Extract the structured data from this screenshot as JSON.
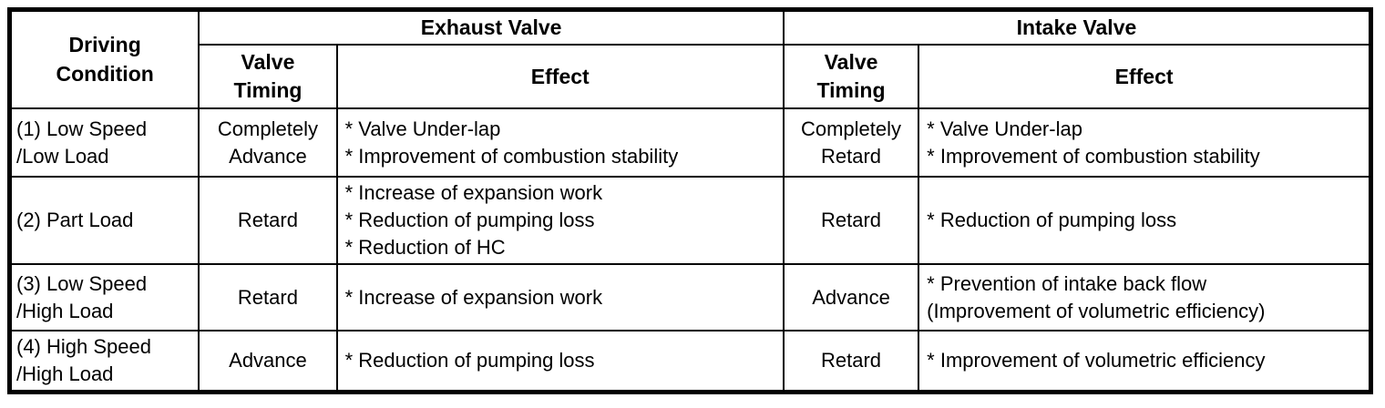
{
  "colors": {
    "background": "#ffffff",
    "border": "#000000",
    "text": "#000000"
  },
  "table": {
    "headers": {
      "driving_condition_lines": [
        "Driving",
        "Condition"
      ],
      "exhaust_valve": "Exhaust Valve",
      "intake_valve": "Intake Valve",
      "exhaust_valve_timing_lines": [
        "Valve",
        "Timing"
      ],
      "exhaust_effect": "Effect",
      "intake_valve_timing_lines": [
        "Valve",
        "Timing"
      ],
      "intake_effect": "Effect"
    },
    "rows": [
      {
        "condition_lines": [
          "(1) Low Speed",
          "/Low Load"
        ],
        "exhaust_timing_lines": [
          "Completely",
          "Advance"
        ],
        "exhaust_effects": [
          "* Valve Under-lap",
          "* Improvement of combustion stability"
        ],
        "intake_timing_lines": [
          "Completely",
          "Retard"
        ],
        "intake_effects": [
          "* Valve Under-lap",
          "* Improvement of combustion stability"
        ]
      },
      {
        "condition_lines": [
          "(2) Part Load"
        ],
        "exhaust_timing_lines": [
          "Retard"
        ],
        "exhaust_effects": [
          "* Increase of expansion work",
          "* Reduction of pumping loss",
          "* Reduction of HC"
        ],
        "intake_timing_lines": [
          "Retard"
        ],
        "intake_effects": [
          "* Reduction of pumping loss"
        ]
      },
      {
        "condition_lines": [
          "(3) Low Speed",
          "/High Load"
        ],
        "exhaust_timing_lines": [
          "Retard"
        ],
        "exhaust_effects": [
          "* Increase of expansion work"
        ],
        "intake_timing_lines": [
          "Advance"
        ],
        "intake_effects": [
          "* Prevention of intake back flow",
          "(Improvement of volumetric efficiency)"
        ]
      },
      {
        "condition_lines": [
          "(4) High Speed",
          "/High Load"
        ],
        "exhaust_timing_lines": [
          "Advance"
        ],
        "exhaust_effects": [
          "* Reduction of pumping loss"
        ],
        "intake_timing_lines": [
          "Retard"
        ],
        "intake_effects": [
          "* Improvement of volumetric efficiency"
        ]
      }
    ]
  }
}
